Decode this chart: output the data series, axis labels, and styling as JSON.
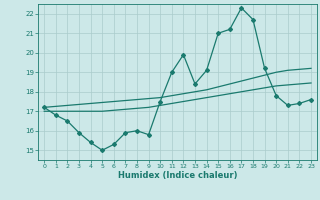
{
  "xlabel": "Humidex (Indice chaleur)",
  "x": [
    0,
    1,
    2,
    3,
    4,
    5,
    6,
    7,
    8,
    9,
    10,
    11,
    12,
    13,
    14,
    15,
    16,
    17,
    18,
    19,
    20,
    21,
    22,
    23
  ],
  "line_data": [
    17.2,
    16.8,
    16.5,
    15.9,
    15.4,
    15.0,
    15.3,
    15.9,
    16.0,
    15.8,
    17.5,
    19.0,
    19.9,
    18.4,
    19.1,
    21.0,
    21.2,
    22.3,
    21.7,
    19.2,
    17.8,
    17.3,
    17.4,
    17.6
  ],
  "line_upper": [
    17.2,
    17.25,
    17.3,
    17.35,
    17.4,
    17.45,
    17.5,
    17.55,
    17.6,
    17.65,
    17.7,
    17.8,
    17.9,
    18.0,
    18.1,
    18.25,
    18.4,
    18.55,
    18.7,
    18.85,
    19.0,
    19.1,
    19.15,
    19.2
  ],
  "line_lower": [
    17.0,
    17.0,
    17.0,
    17.0,
    17.0,
    17.0,
    17.05,
    17.1,
    17.15,
    17.2,
    17.3,
    17.4,
    17.5,
    17.6,
    17.7,
    17.8,
    17.9,
    18.0,
    18.1,
    18.2,
    18.3,
    18.35,
    18.4,
    18.45
  ],
  "ylim": [
    14.5,
    22.5
  ],
  "xlim": [
    -0.5,
    23.5
  ],
  "yticks": [
    15,
    16,
    17,
    18,
    19,
    20,
    21,
    22
  ],
  "xticks": [
    0,
    1,
    2,
    3,
    4,
    5,
    6,
    7,
    8,
    9,
    10,
    11,
    12,
    13,
    14,
    15,
    16,
    17,
    18,
    19,
    20,
    21,
    22,
    23
  ],
  "line_color": "#1a7a6e",
  "bg_color": "#cce8e8",
  "grid_color": "#aacccc",
  "figsize": [
    3.2,
    2.0
  ],
  "dpi": 100
}
